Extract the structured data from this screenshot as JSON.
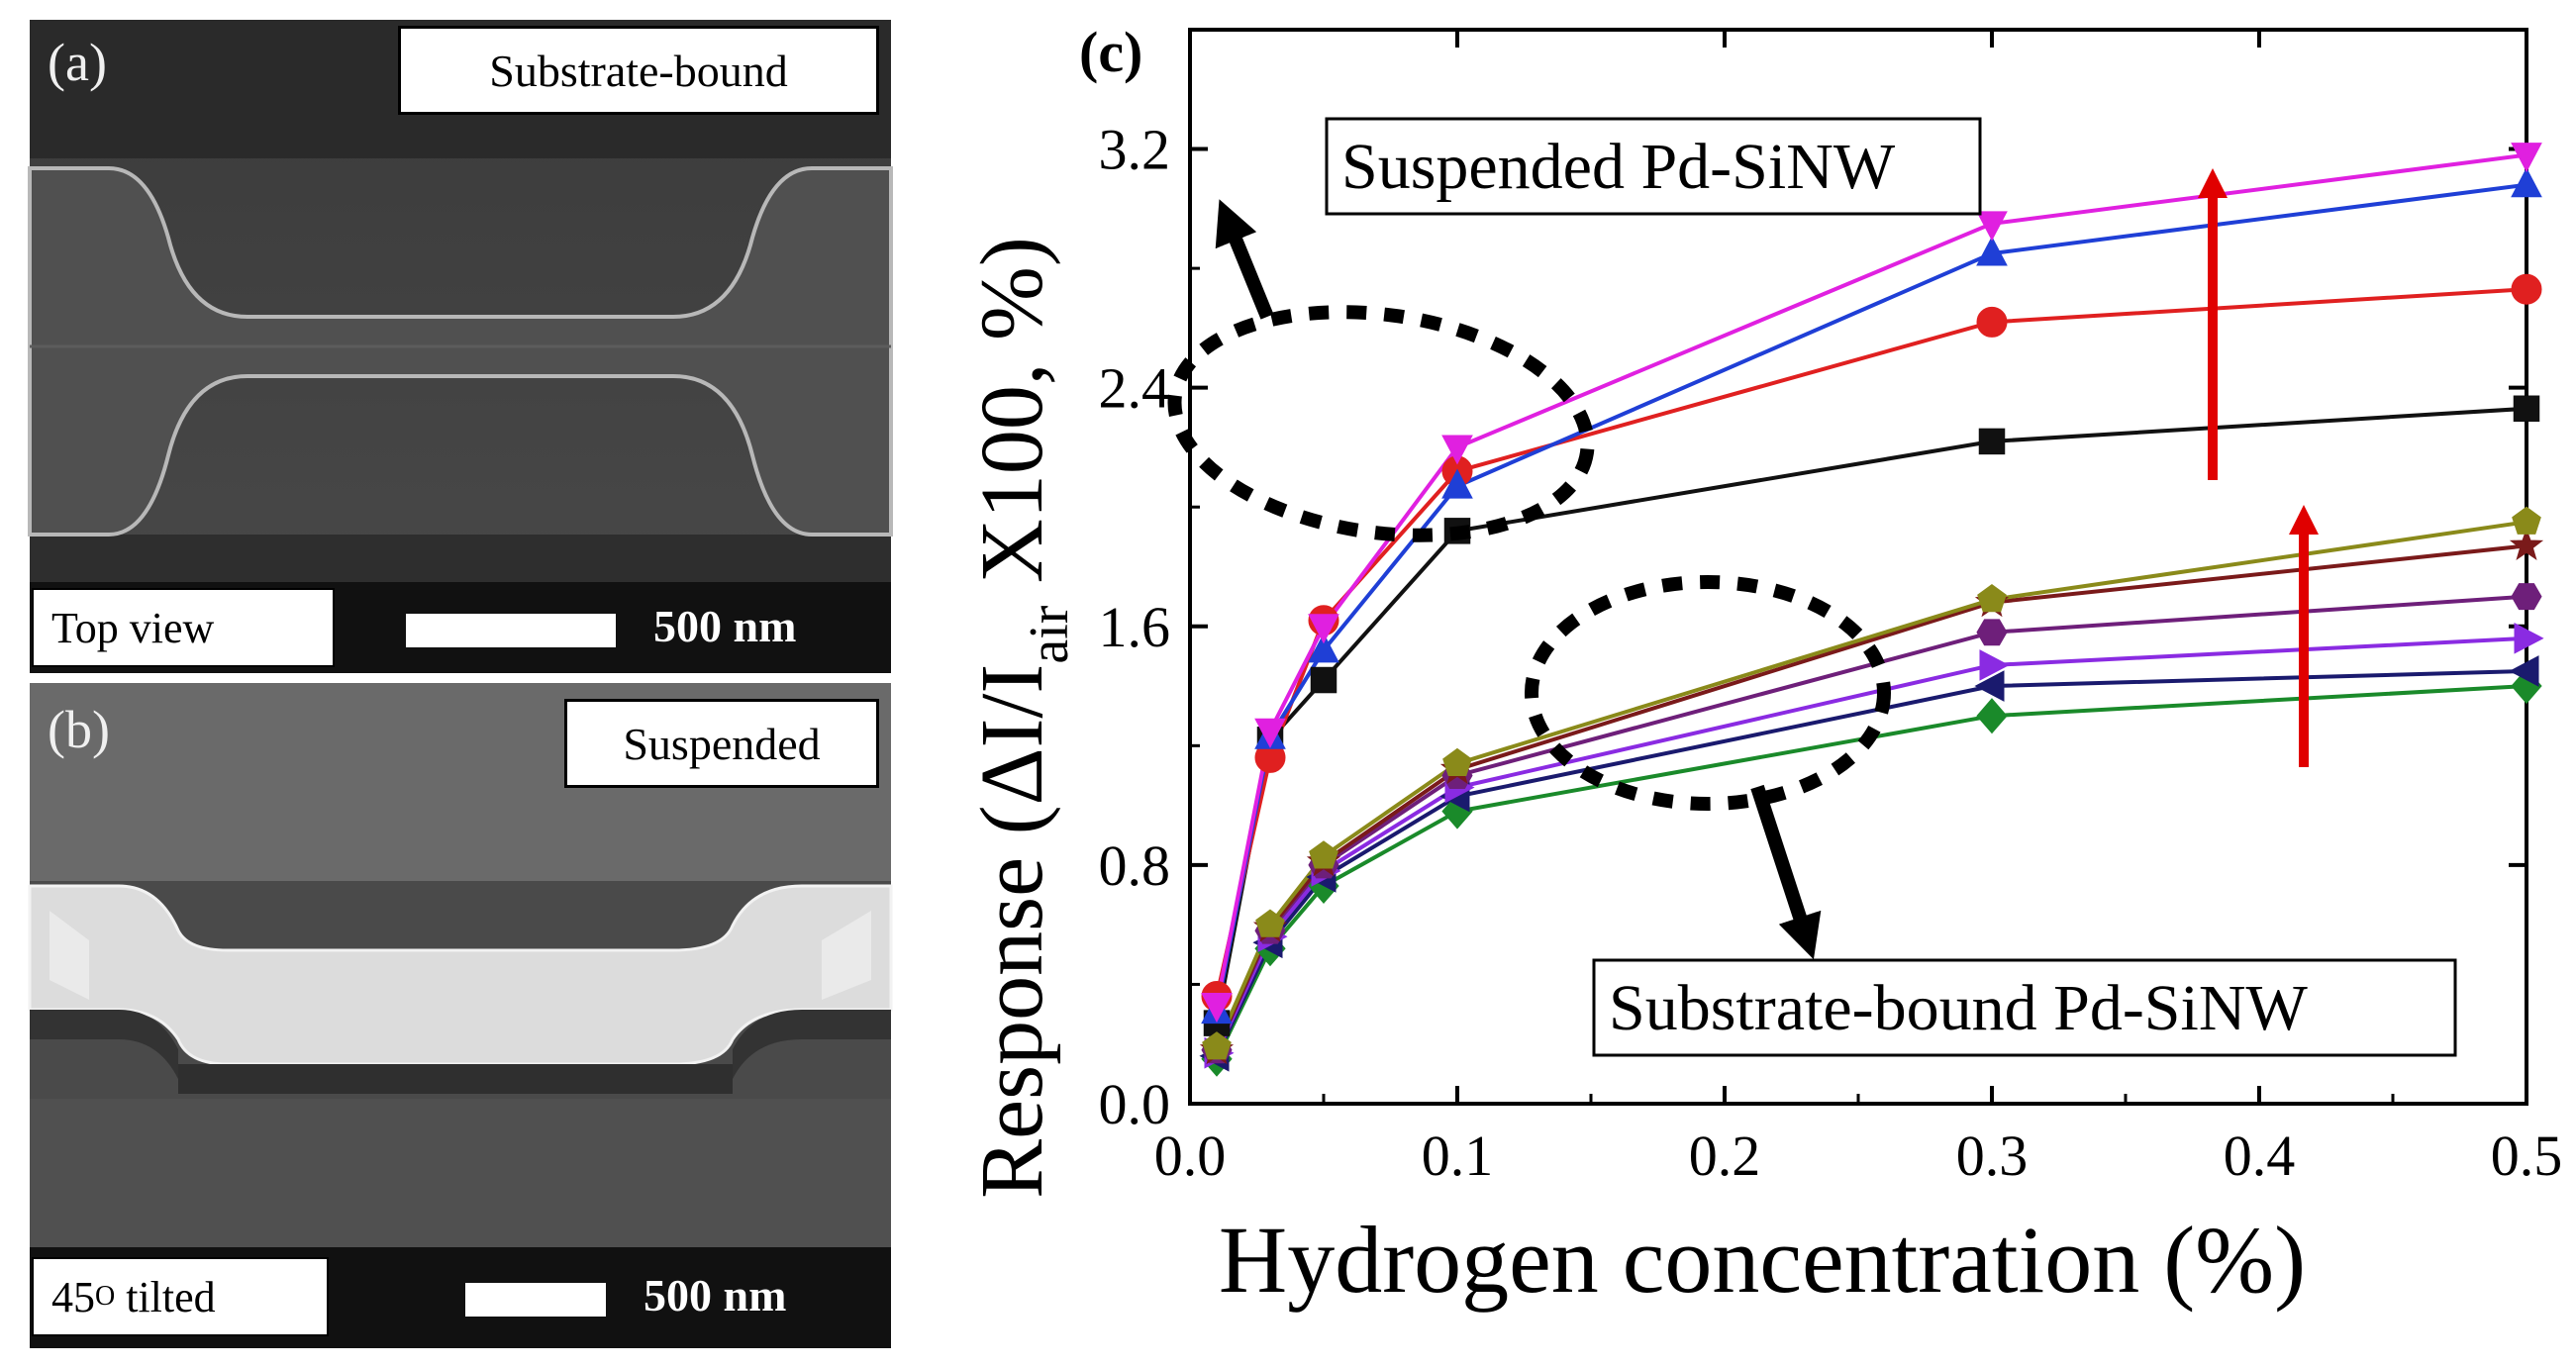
{
  "panel_a": {
    "letter": "(a)",
    "tag": "Substrate-bound",
    "view": "Top view",
    "scale": "500 nm"
  },
  "panel_b": {
    "letter": "(b)",
    "tag": "Suspended",
    "view_main": "45",
    "view_sup": "O",
    "view_rest": " tilted",
    "scale": "500 nm"
  },
  "chart_data": {
    "type": "line",
    "panel_letter": "(c)",
    "xlabel": "Hydrogen concentration (%)",
    "ylabel_main": "Response (ΔI/I",
    "ylabel_sub": "air",
    "ylabel_tail": " X100, %)",
    "xlim": [
      0.0,
      0.5
    ],
    "ylim": [
      0.0,
      3.6
    ],
    "xticks": [
      "0.0",
      "0.1",
      "0.2",
      "0.3",
      "0.4",
      "0.5"
    ],
    "yticks": [
      "0.0",
      "0.8",
      "1.6",
      "2.4",
      "3.2"
    ],
    "x": [
      0.01,
      0.03,
      0.05,
      0.1,
      0.3,
      0.5
    ],
    "annotations": {
      "suspended": "Suspended Pd-SiNW",
      "substrate": "Substrate-bound Pd-SiNW"
    },
    "series": [
      {
        "name": "suspended-black",
        "group": "suspended",
        "color": "#111111",
        "marker": "square",
        "values": [
          0.27,
          1.22,
          1.42,
          1.92,
          2.22,
          2.33
        ]
      },
      {
        "name": "suspended-red",
        "group": "suspended",
        "color": "#e02020",
        "marker": "circle",
        "values": [
          0.36,
          1.16,
          1.62,
          2.12,
          2.62,
          2.73
        ]
      },
      {
        "name": "suspended-blue",
        "group": "suspended",
        "color": "#1f3fd6",
        "marker": "triangle-up",
        "values": [
          0.31,
          1.23,
          1.52,
          2.07,
          2.85,
          3.08
        ]
      },
      {
        "name": "suspended-magenta",
        "group": "suspended",
        "color": "#e020e0",
        "marker": "triangle-down",
        "values": [
          0.33,
          1.25,
          1.6,
          2.2,
          2.95,
          3.18
        ]
      },
      {
        "name": "substrate-green",
        "group": "substrate",
        "color": "#1a8a2a",
        "marker": "diamond",
        "values": [
          0.15,
          0.52,
          0.73,
          0.98,
          1.3,
          1.4
        ]
      },
      {
        "name": "substrate-navy",
        "group": "substrate",
        "color": "#1a1a6e",
        "marker": "triangle-left",
        "values": [
          0.16,
          0.54,
          0.76,
          1.03,
          1.4,
          1.45
        ]
      },
      {
        "name": "substrate-violet",
        "group": "substrate",
        "color": "#8a2be2",
        "marker": "triangle-right",
        "values": [
          0.17,
          0.56,
          0.78,
          1.06,
          1.47,
          1.56
        ]
      },
      {
        "name": "substrate-purple",
        "group": "substrate",
        "color": "#6e1f7a",
        "marker": "hexagon",
        "values": [
          0.18,
          0.58,
          0.8,
          1.1,
          1.58,
          1.7
        ]
      },
      {
        "name": "substrate-maroon",
        "group": "substrate",
        "color": "#7a1a1a",
        "marker": "star",
        "values": [
          0.18,
          0.59,
          0.81,
          1.12,
          1.68,
          1.87
        ]
      },
      {
        "name": "substrate-olive",
        "group": "substrate",
        "color": "#8a8a1a",
        "marker": "pentagon",
        "values": [
          0.19,
          0.6,
          0.83,
          1.14,
          1.69,
          1.95
        ]
      }
    ]
  }
}
